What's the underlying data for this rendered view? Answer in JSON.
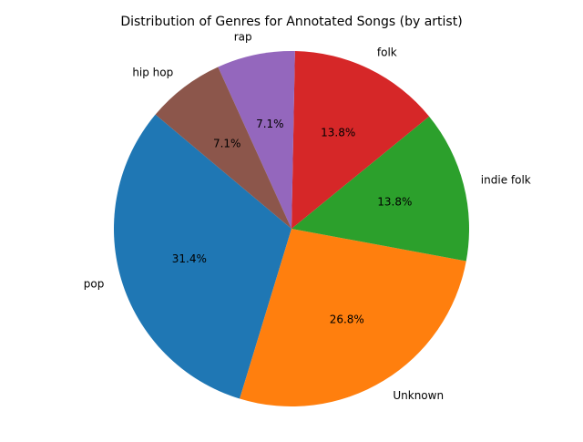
{
  "chart_data": {
    "type": "pie",
    "title": "Distribution of Genres for Annotated Songs (by artist)",
    "categories": [
      "pop",
      "Unknown",
      "indie folk",
      "folk",
      "rap",
      "hip hop"
    ],
    "values": [
      31.4,
      26.8,
      13.8,
      13.8,
      7.1,
      7.1
    ],
    "value_labels": [
      "31.4%",
      "26.8%",
      "13.8%",
      "13.8%",
      "7.1%",
      "7.1%"
    ],
    "colors": [
      "#1f77b4",
      "#ff7f0e",
      "#2ca02c",
      "#d62728",
      "#9467bd",
      "#8c564b"
    ],
    "start_angle_deg": 140,
    "direction": "counterclockwise",
    "legend": "none"
  }
}
